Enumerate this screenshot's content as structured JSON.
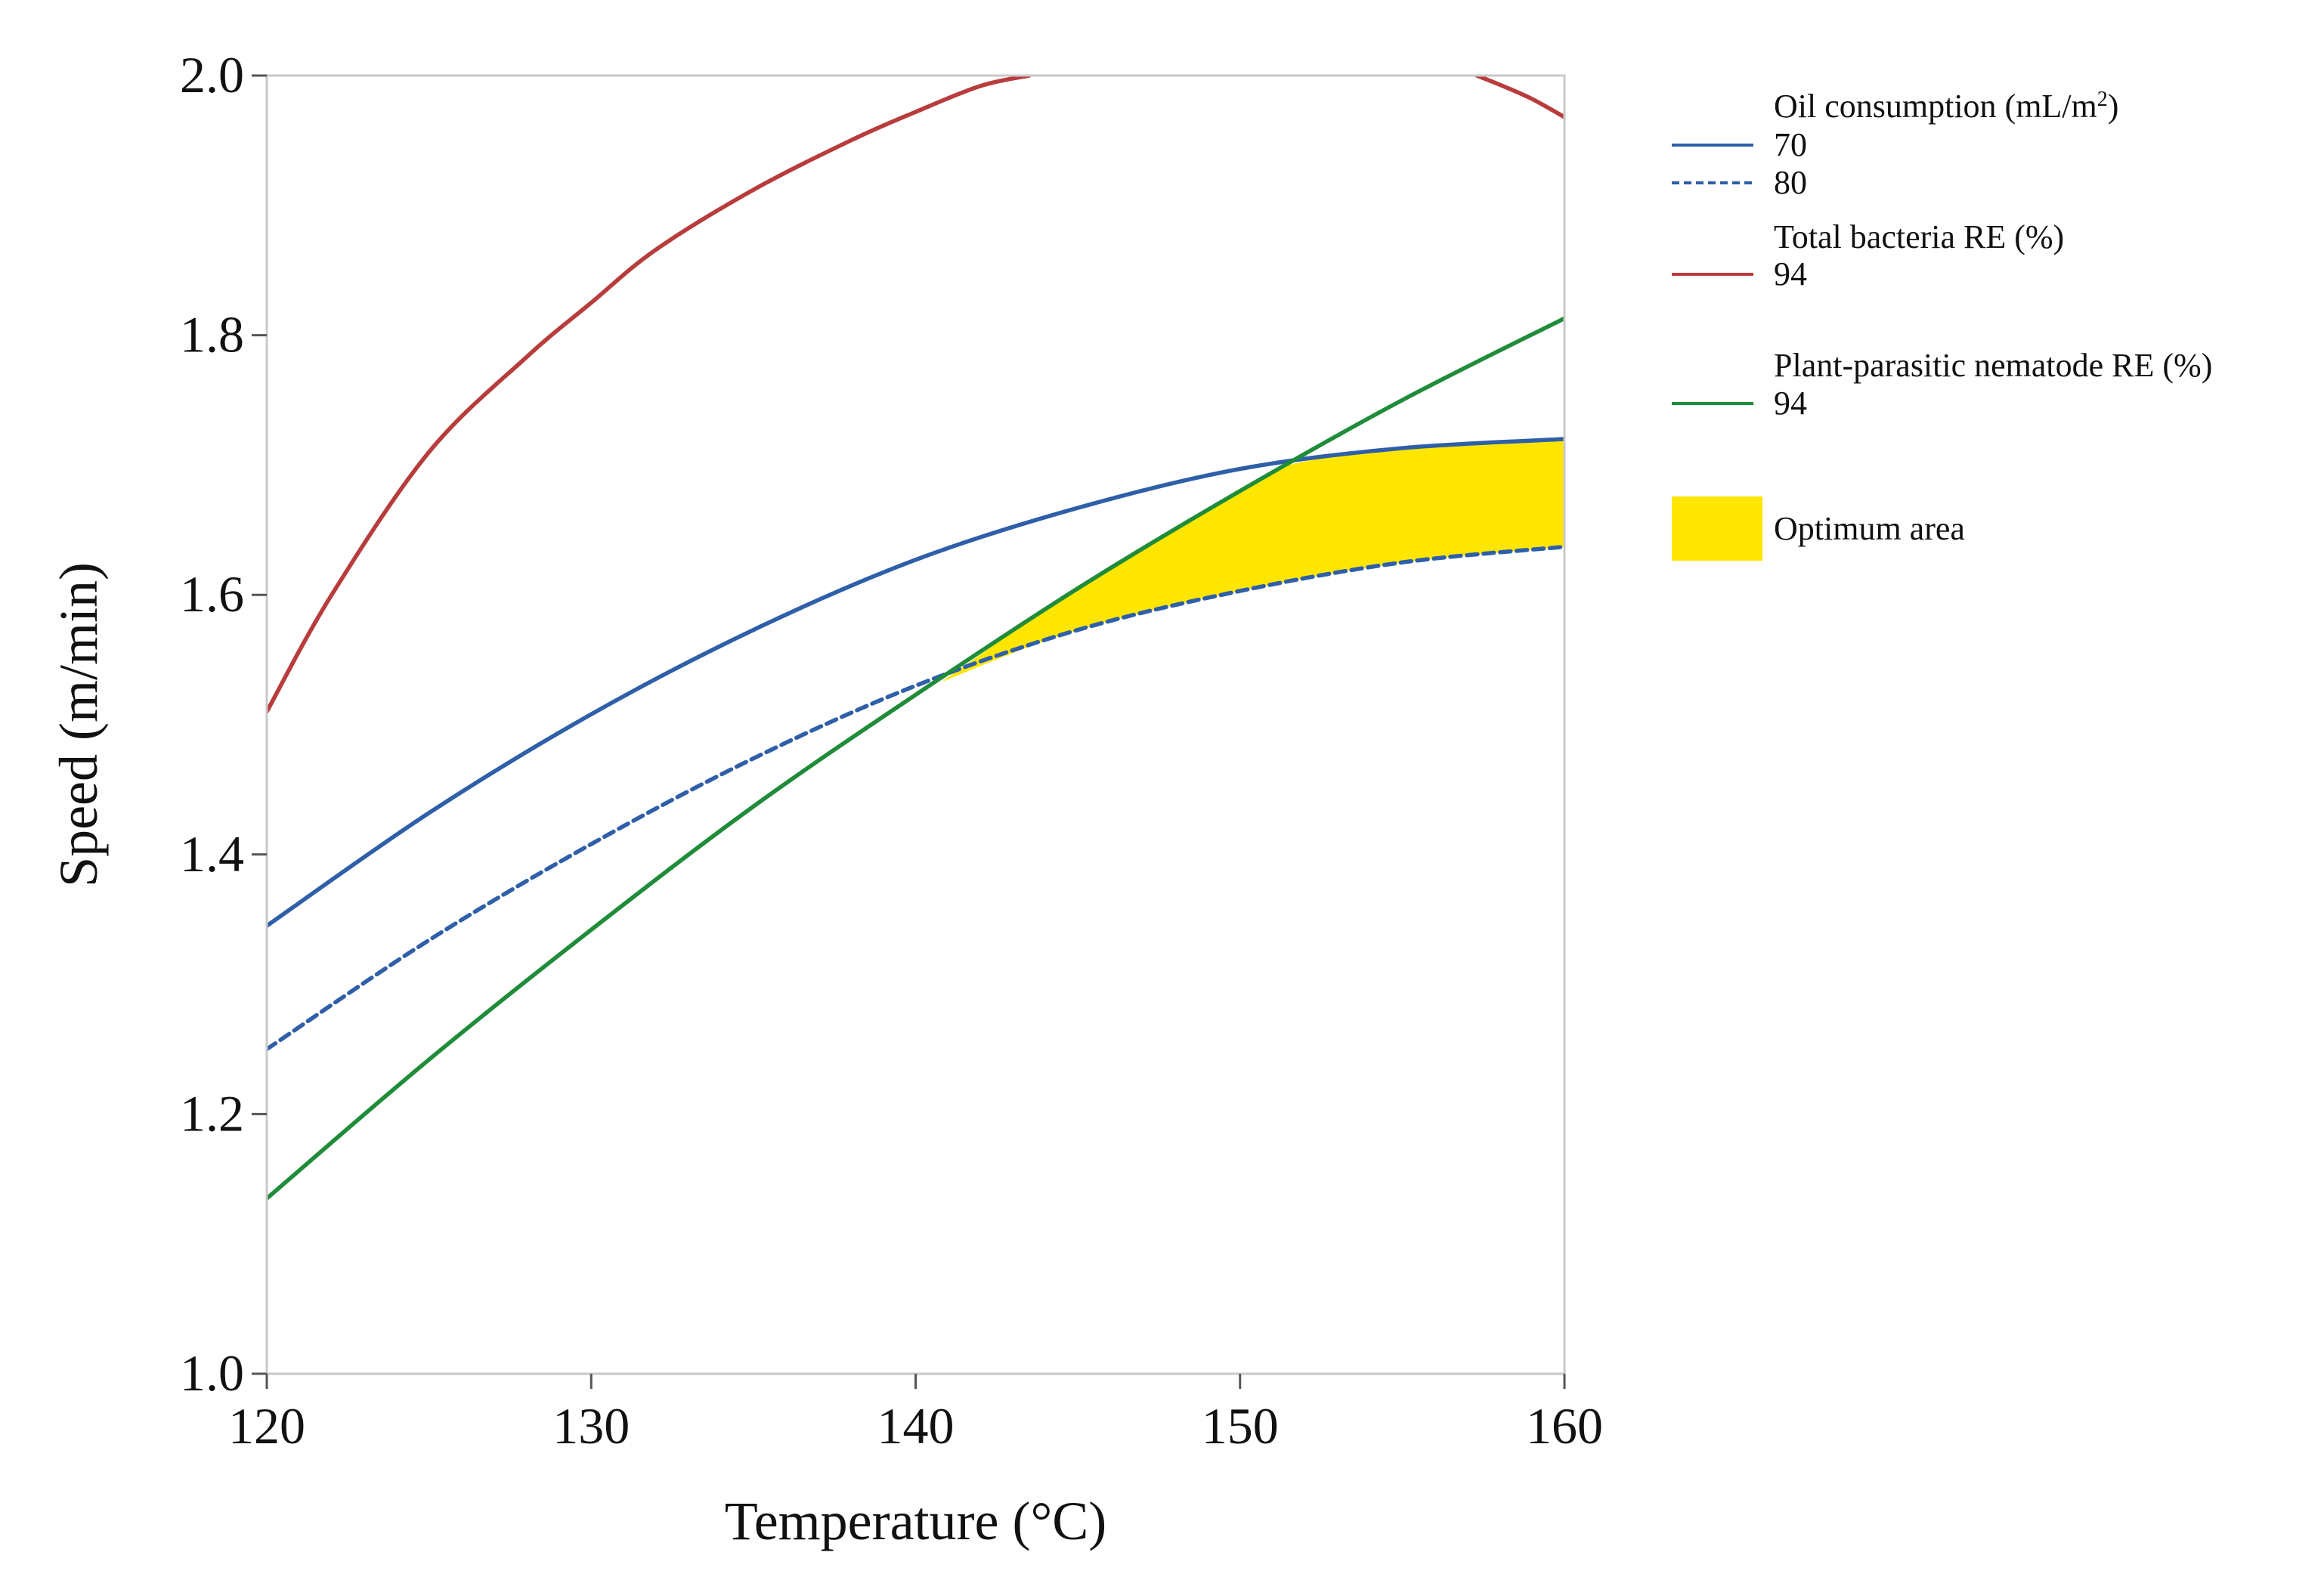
{
  "chart_data": {
    "type": "line",
    "title": "",
    "xlabel": "Temperature (°C)",
    "ylabel": "Speed (m/min)",
    "xlim": [
      120,
      160
    ],
    "ylim": [
      1.0,
      2.0
    ],
    "x_ticks": [
      120,
      130,
      140,
      150,
      160
    ],
    "x_tick_labels": [
      "120",
      "130",
      "140",
      "150",
      "160"
    ],
    "y_ticks": [
      1.0,
      1.2,
      1.4,
      1.6,
      1.8,
      2.0
    ],
    "y_tick_labels": [
      "1.0",
      "1.2",
      "1.4",
      "1.6",
      "1.8",
      "2.0"
    ],
    "grid": false,
    "legend_position": "right",
    "series": [
      {
        "key": "oil70",
        "name": "Oil consumption 70 mL/m²",
        "legend_group": "Oil consumption (mL/m²)",
        "legend_label": "70",
        "color": "#2e5fa8",
        "style": "solid",
        "x": [
          120,
          125,
          130,
          135,
          140,
          145,
          150,
          155,
          160
        ],
        "y": [
          1.345,
          1.432,
          1.508,
          1.573,
          1.627,
          1.667,
          1.697,
          1.713,
          1.72
        ]
      },
      {
        "key": "oil80",
        "name": "Oil consumption 80 mL/m²",
        "legend_group": "Oil consumption (mL/m²)",
        "legend_label": "80",
        "color": "#2e5fa8",
        "style": "dashed",
        "x": [
          120,
          125,
          130,
          135,
          140,
          145,
          150,
          155,
          160
        ],
        "y": [
          1.25,
          1.334,
          1.408,
          1.474,
          1.53,
          1.573,
          1.603,
          1.625,
          1.637
        ]
      },
      {
        "key": "bact94",
        "name": "Total bacteria RE 94%",
        "legend_group": "Total bacteria RE (%)",
        "legend_label": "94",
        "color": "#b83c3c",
        "style": "solid",
        "segments": [
          {
            "x": [
              120,
              122,
              125,
              128,
              130,
              132,
              135,
              138,
              140,
              142,
              143.5
            ],
            "y": [
              1.51,
              1.6,
              1.71,
              1.783,
              1.825,
              1.866,
              1.912,
              1.95,
              1.972,
              1.992,
              2.0
            ]
          },
          {
            "x": [
              157.3,
              158,
              159,
              160
            ],
            "y": [
              2.0,
              1.993,
              1.982,
              1.968
            ]
          }
        ]
      },
      {
        "key": "nem94",
        "name": "Plant-parasitic nematode RE 94%",
        "legend_group": "Plant-parasitic nematode RE (%)",
        "legend_label": "94",
        "color": "#1f8c3a",
        "style": "solid",
        "x": [
          120,
          125,
          130,
          135,
          140,
          145,
          150,
          155,
          160
        ],
        "y": [
          1.135,
          1.242,
          1.342,
          1.437,
          1.523,
          1.605,
          1.68,
          1.75,
          1.813
        ]
      }
    ],
    "regions": [
      {
        "name": "Optimum area",
        "color": "#ffe600",
        "upper_boundary": {
          "x": [
            140.8,
            145,
            150,
            151.5,
            155,
            160
          ],
          "y": [
            1.533,
            1.605,
            1.68,
            1.7,
            1.713,
            1.72
          ]
        },
        "lower_boundary": {
          "x": [
            140.8,
            145,
            150,
            155,
            160
          ],
          "y": [
            1.533,
            1.573,
            1.603,
            1.625,
            1.637
          ]
        }
      }
    ],
    "legend": {
      "groups": [
        {
          "title": "Oil consumption (mL/m",
          "title_sup": "2",
          "title_end": ")",
          "entries": [
            {
              "label": "70",
              "color": "#2e5fa8",
              "style": "solid"
            },
            {
              "label": "80",
              "color": "#2e5fa8",
              "style": "dashed"
            }
          ]
        },
        {
          "title": "Total bacteria RE (%)",
          "entries": [
            {
              "label": "94",
              "color": "#b83c3c",
              "style": "solid"
            }
          ]
        },
        {
          "title": "Plant-parasitic nematode RE (%)",
          "entries": [
            {
              "label": "94",
              "color": "#1f8c3a",
              "style": "solid"
            }
          ]
        }
      ],
      "area_label": "Optimum area",
      "area_color": "#ffe600"
    }
  }
}
